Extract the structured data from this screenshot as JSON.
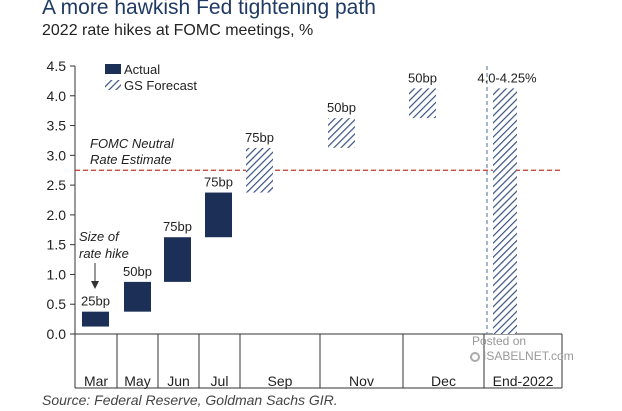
{
  "title": "A more hawkish Fed tightening path",
  "subtitle": "2022 rate hikes at FOMC meetings, %",
  "source": "Source: Federal Reserve, Goldman Sachs GIR.",
  "watermark": {
    "line1": "Posted on",
    "line2": "ISABELNET.com"
  },
  "colors": {
    "actual": "#1b2f57",
    "forecast_hatch": "#3b5282",
    "neutral_line": "#c0392b",
    "end_line": "#6b87a8"
  },
  "chart_data": {
    "type": "bar",
    "subtype": "waterfall",
    "categories": [
      "Mar",
      "May",
      "Jun",
      "Jul",
      "Sep",
      "Nov",
      "Dec",
      "End-2022"
    ],
    "series": [
      {
        "name": "Actual",
        "points": [
          {
            "category": "Mar",
            "from": 0.125,
            "to": 0.375,
            "label": "25bp"
          },
          {
            "category": "May",
            "from": 0.375,
            "to": 0.875,
            "label": "50bp"
          },
          {
            "category": "Jun",
            "from": 0.875,
            "to": 1.625,
            "label": "75bp"
          },
          {
            "category": "Jul",
            "from": 1.625,
            "to": 2.375,
            "label": "75bp"
          }
        ]
      },
      {
        "name": "GS Forecast",
        "points": [
          {
            "category": "Sep",
            "from": 2.375,
            "to": 3.125,
            "label": "75bp"
          },
          {
            "category": "Nov",
            "from": 3.125,
            "to": 3.625,
            "label": "50bp"
          },
          {
            "category": "Dec",
            "from": 3.625,
            "to": 4.125,
            "label": "50bp"
          },
          {
            "category": "End-2022",
            "from": 0.0,
            "to": 4.125,
            "label": "4.0-4.25%"
          }
        ]
      }
    ],
    "ylim": [
      0,
      4.5
    ],
    "yticks": [
      "0.0",
      "0.5",
      "1.0",
      "1.5",
      "2.0",
      "2.5",
      "3.0",
      "3.5",
      "4.0",
      "4.5"
    ],
    "grid": false,
    "legend": {
      "position": "top-left",
      "entries": [
        "Actual",
        "GS Forecast"
      ]
    },
    "reference_lines": [
      {
        "label_lines": [
          "FOMC Neutral",
          "Rate Estimate"
        ],
        "y": 2.75,
        "style": "dashed"
      }
    ],
    "vertical_markers": [
      {
        "position": "between Dec and End-2022",
        "style": "dashed"
      }
    ],
    "annotations": [
      {
        "text_lines": [
          "Size of",
          "rate hike"
        ],
        "points_to": "Mar",
        "arrow": "down"
      }
    ]
  }
}
